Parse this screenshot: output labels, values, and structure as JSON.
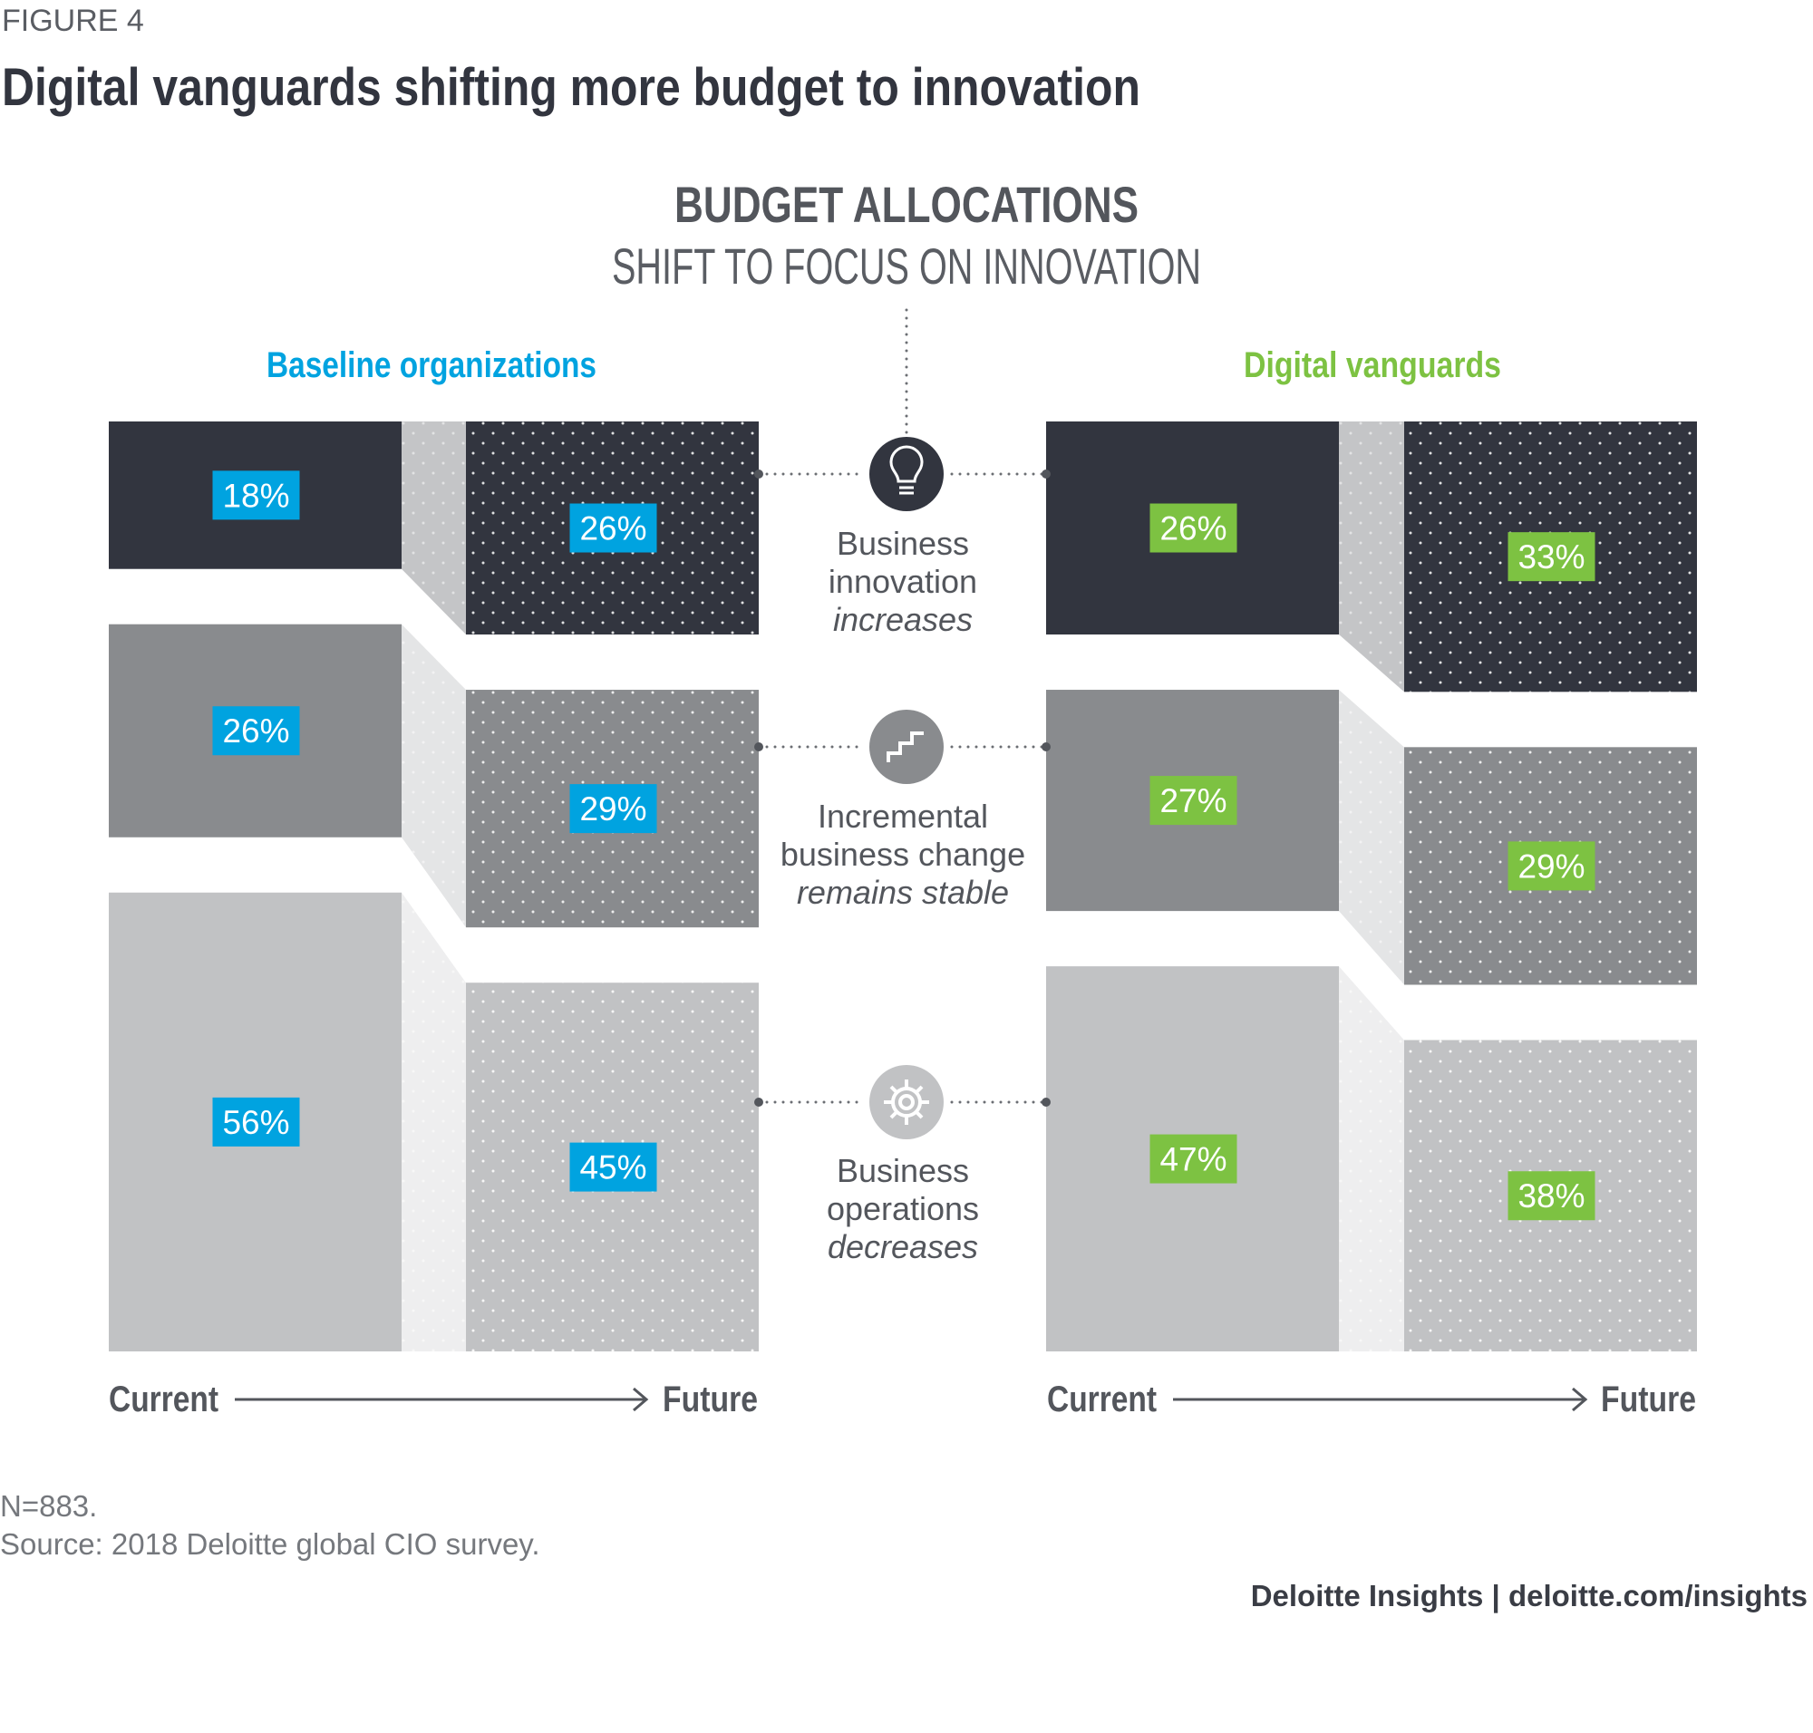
{
  "figure_label": "FIGURE 4",
  "title": "Digital vanguards shifting more budget to innovation",
  "chart_data": {
    "type": "bar",
    "title": "BUDGET ALLOCATIONS",
    "subtitle": "SHIFT TO FOCUS ON INNOVATION",
    "unit": "%",
    "categories": [
      "Business innovation",
      "Incremental business change",
      "Business operations"
    ],
    "groups": [
      {
        "name": "Baseline organizations",
        "color": "#00a3e0",
        "current": [
          18,
          26,
          56
        ],
        "future": [
          26,
          29,
          45
        ],
        "current_labels": [
          "18%",
          "26%",
          "56%"
        ],
        "future_labels": [
          "26%",
          "29%",
          "45%"
        ]
      },
      {
        "name": "Digital vanguards",
        "color": "#7dc242",
        "current": [
          26,
          27,
          47
        ],
        "future": [
          33,
          29,
          38
        ],
        "current_labels": [
          "26%",
          "27%",
          "47%"
        ],
        "future_labels": [
          "33%",
          "29%",
          "38%"
        ]
      }
    ],
    "axis": {
      "start": "Current",
      "end": "Future"
    },
    "trends": [
      {
        "line1": "Business",
        "line2": "innovation",
        "trend": "increases",
        "icon": "lightbulb-icon"
      },
      {
        "line1": "Incremental",
        "line2": "business change",
        "trend": "remains stable",
        "icon": "stairs-icon"
      },
      {
        "line1": "Business",
        "line2": "operations",
        "trend": "decreases",
        "icon": "gear-icon"
      }
    ],
    "block_colors": [
      "#32353f",
      "#898b8e",
      "#c1c2c4"
    ]
  },
  "footer": {
    "note": "N=883.",
    "source": "Source: 2018 Deloitte global CIO survey.",
    "brand": "Deloitte Insights | deloitte.com/insights"
  }
}
